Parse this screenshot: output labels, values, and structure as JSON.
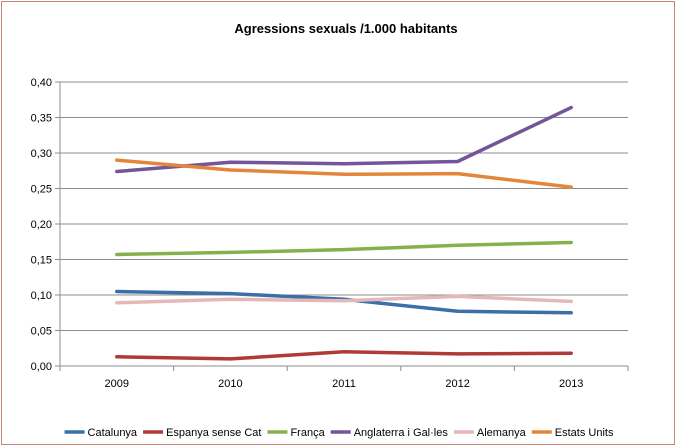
{
  "chart_data": {
    "type": "line",
    "title": "Agressions sexuals /1.000 habitants",
    "xlabel": "",
    "ylabel": "",
    "categories": [
      "2009",
      "2010",
      "2011",
      "2012",
      "2013"
    ],
    "ylim": [
      0,
      0.4
    ],
    "yticks": [
      "0,00",
      "0,05",
      "0,10",
      "0,15",
      "0,20",
      "0,25",
      "0,30",
      "0,35",
      "0,40"
    ],
    "grid": true,
    "legend_position": "bottom",
    "series": [
      {
        "name": "Catalunya",
        "color": "#3c6ea8",
        "values": [
          0.105,
          0.102,
          0.094,
          0.077,
          0.075
        ]
      },
      {
        "name": "Espanya sense Cat",
        "color": "#b03a37",
        "values": [
          0.013,
          0.01,
          0.02,
          0.017,
          0.018
        ]
      },
      {
        "name": "França",
        "color": "#86b04b",
        "values": [
          0.157,
          0.16,
          0.164,
          0.17,
          0.174
        ]
      },
      {
        "name": "Anglaterra i Gal·les",
        "color": "#74559a",
        "values": [
          0.274,
          0.287,
          0.285,
          0.288,
          0.364
        ]
      },
      {
        "name": "Alemanya",
        "color": "#e4b8b7",
        "values": [
          0.089,
          0.094,
          0.092,
          0.098,
          0.091
        ]
      },
      {
        "name": "Estats Units",
        "color": "#e3863a",
        "values": [
          0.29,
          0.276,
          0.27,
          0.271,
          0.252
        ]
      }
    ]
  }
}
